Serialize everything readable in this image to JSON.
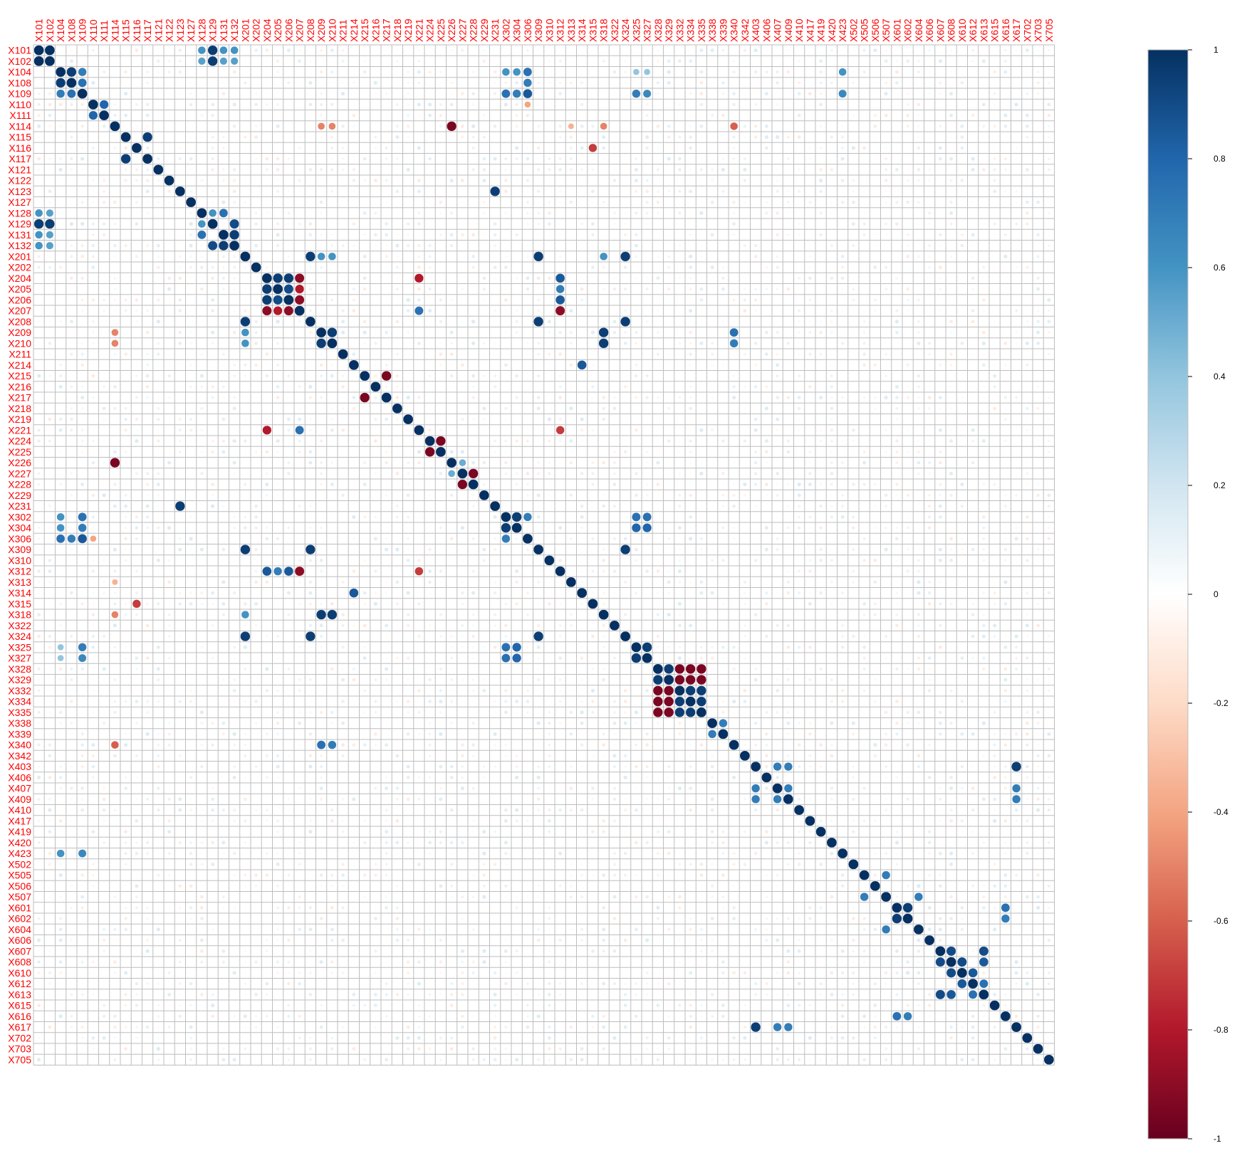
{
  "chart_data": {
    "type": "heatmap",
    "subtype": "correlation-circle-matrix",
    "title": "",
    "label_color": "#FF0000",
    "variables": [
      "X101",
      "X102",
      "X104",
      "X108",
      "X109",
      "X110",
      "X111",
      "X114",
      "X115",
      "X116",
      "X117",
      "X121",
      "X122",
      "X123",
      "X127",
      "X128",
      "X129",
      "X131",
      "X132",
      "X201",
      "X202",
      "X204",
      "X205",
      "X206",
      "X207",
      "X208",
      "X209",
      "X210",
      "X211",
      "X214",
      "X215",
      "X216",
      "X217",
      "X218",
      "X219",
      "X221",
      "X224",
      "X225",
      "X226",
      "X227",
      "X228",
      "X229",
      "X231",
      "X302",
      "X304",
      "X306",
      "X309",
      "X310",
      "X312",
      "X313",
      "X314",
      "X315",
      "X318",
      "X322",
      "X324",
      "X325",
      "X327",
      "X328",
      "X329",
      "X332",
      "X334",
      "X335",
      "X338",
      "X339",
      "X340",
      "X342",
      "X403",
      "X406",
      "X407",
      "X409",
      "X410",
      "X417",
      "X419",
      "X420",
      "X423",
      "X502",
      "X505",
      "X506",
      "X507",
      "X601",
      "X602",
      "X604",
      "X606",
      "X607",
      "X608",
      "X610",
      "X612",
      "X613",
      "X615",
      "X616",
      "X617",
      "X702",
      "X703",
      "X705"
    ],
    "diagonal": 1,
    "correlations": [
      [
        "X101",
        "X102",
        1.0
      ],
      [
        "X101",
        "X129",
        0.95
      ],
      [
        "X101",
        "X131",
        0.6
      ],
      [
        "X101",
        "X132",
        0.6
      ],
      [
        "X101",
        "X128",
        0.6
      ],
      [
        "X102",
        "X129",
        0.95
      ],
      [
        "X102",
        "X128",
        0.55
      ],
      [
        "X102",
        "X131",
        0.55
      ],
      [
        "X102",
        "X132",
        0.55
      ],
      [
        "X104",
        "X108",
        0.95
      ],
      [
        "X104",
        "X109",
        0.7
      ],
      [
        "X104",
        "X302",
        0.6
      ],
      [
        "X104",
        "X304",
        0.6
      ],
      [
        "X104",
        "X306",
        0.75
      ],
      [
        "X104",
        "X423",
        0.6
      ],
      [
        "X104",
        "X325",
        0.4
      ],
      [
        "X104",
        "X327",
        0.4
      ],
      [
        "X108",
        "X109",
        0.75
      ],
      [
        "X108",
        "X306",
        0.7
      ],
      [
        "X109",
        "X302",
        0.75
      ],
      [
        "X109",
        "X304",
        0.7
      ],
      [
        "X109",
        "X306",
        0.85
      ],
      [
        "X109",
        "X325",
        0.7
      ],
      [
        "X109",
        "X327",
        0.65
      ],
      [
        "X109",
        "X423",
        0.65
      ],
      [
        "X110",
        "X111",
        0.8
      ],
      [
        "X110",
        "X306",
        -0.4
      ],
      [
        "X114",
        "X226",
        -0.95
      ],
      [
        "X114",
        "X340",
        -0.6
      ],
      [
        "X114",
        "X209",
        -0.5
      ],
      [
        "X114",
        "X210",
        -0.5
      ],
      [
        "X114",
        "X313",
        -0.35
      ],
      [
        "X114",
        "X318",
        -0.5
      ],
      [
        "X115",
        "X117",
        0.95
      ],
      [
        "X116",
        "X315",
        -0.7
      ],
      [
        "X123",
        "X231",
        0.95
      ],
      [
        "X128",
        "X131",
        0.75
      ],
      [
        "X128",
        "X129",
        0.6
      ],
      [
        "X129",
        "X132",
        0.9
      ],
      [
        "X131",
        "X132",
        0.95
      ],
      [
        "X201",
        "X208",
        0.95
      ],
      [
        "X201",
        "X309",
        0.95
      ],
      [
        "X201",
        "X324",
        0.95
      ],
      [
        "X201",
        "X318",
        0.6
      ],
      [
        "X201",
        "X209",
        0.6
      ],
      [
        "X201",
        "X210",
        0.6
      ],
      [
        "X204",
        "X205",
        0.95
      ],
      [
        "X204",
        "X206",
        0.95
      ],
      [
        "X204",
        "X207",
        -0.9
      ],
      [
        "X204",
        "X221",
        -0.8
      ],
      [
        "X204",
        "X312",
        0.85
      ],
      [
        "X205",
        "X206",
        0.9
      ],
      [
        "X205",
        "X207",
        -0.8
      ],
      [
        "X205",
        "X312",
        0.7
      ],
      [
        "X206",
        "X207",
        -0.9
      ],
      [
        "X206",
        "X312",
        0.85
      ],
      [
        "X207",
        "X312",
        -0.9
      ],
      [
        "X207",
        "X221",
        0.75
      ],
      [
        "X208",
        "X309",
        0.95
      ],
      [
        "X208",
        "X324",
        0.95
      ],
      [
        "X209",
        "X210",
        0.95
      ],
      [
        "X209",
        "X318",
        0.95
      ],
      [
        "X209",
        "X340",
        0.75
      ],
      [
        "X210",
        "X318",
        0.95
      ],
      [
        "X210",
        "X340",
        0.7
      ],
      [
        "X214",
        "X314",
        0.85
      ],
      [
        "X215",
        "X217",
        -0.95
      ],
      [
        "X221",
        "X312",
        -0.7
      ],
      [
        "X224",
        "X225",
        -0.95
      ],
      [
        "X226",
        "X227",
        0.5
      ],
      [
        "X227",
        "X228",
        -0.95
      ],
      [
        "X302",
        "X304",
        0.95
      ],
      [
        "X302",
        "X306",
        0.7
      ],
      [
        "X302",
        "X325",
        0.75
      ],
      [
        "X302",
        "X327",
        0.75
      ],
      [
        "X304",
        "X325",
        0.8
      ],
      [
        "X304",
        "X327",
        0.8
      ],
      [
        "X309",
        "X324",
        0.95
      ],
      [
        "X325",
        "X327",
        0.95
      ],
      [
        "X328",
        "X329",
        0.95
      ],
      [
        "X328",
        "X332",
        -0.95
      ],
      [
        "X328",
        "X334",
        -0.95
      ],
      [
        "X328",
        "X335",
        -0.95
      ],
      [
        "X329",
        "X332",
        -0.95
      ],
      [
        "X329",
        "X334",
        -0.95
      ],
      [
        "X329",
        "X335",
        -0.95
      ],
      [
        "X332",
        "X334",
        0.95
      ],
      [
        "X332",
        "X335",
        0.95
      ],
      [
        "X334",
        "X335",
        0.95
      ],
      [
        "X338",
        "X339",
        0.7
      ],
      [
        "X403",
        "X407",
        0.7
      ],
      [
        "X403",
        "X409",
        0.7
      ],
      [
        "X403",
        "X617",
        0.95
      ],
      [
        "X407",
        "X409",
        0.7
      ],
      [
        "X407",
        "X617",
        0.7
      ],
      [
        "X409",
        "X617",
        0.7
      ],
      [
        "X505",
        "X507",
        0.7
      ],
      [
        "X507",
        "X604",
        0.7
      ],
      [
        "X601",
        "X602",
        0.95
      ],
      [
        "X601",
        "X616",
        0.75
      ],
      [
        "X602",
        "X616",
        0.7
      ],
      [
        "X607",
        "X608",
        0.9
      ],
      [
        "X607",
        "X613",
        0.9
      ],
      [
        "X608",
        "X610",
        0.9
      ],
      [
        "X608",
        "X613",
        0.85
      ],
      [
        "X610",
        "X612",
        0.85
      ],
      [
        "X612",
        "X613",
        0.75
      ]
    ],
    "scale": {
      "min": -1,
      "max": 1,
      "colors": [
        "#67001F",
        "#B2182B",
        "#D6604D",
        "#F4A582",
        "#FDDBC7",
        "#FFFFFF",
        "#D1E5F0",
        "#92C5DE",
        "#4393C3",
        "#2166AC",
        "#053061"
      ],
      "tick_labels": [
        "1",
        "0.8",
        "0.6",
        "0.4",
        "0.2",
        "0",
        "-0.2",
        "-0.4",
        "-0.6",
        "-0.8",
        "-1"
      ],
      "tick_values": [
        1,
        0.8,
        0.6,
        0.4,
        0.2,
        0,
        -0.2,
        -0.4,
        -0.6,
        -0.8,
        -1
      ]
    },
    "grid": true,
    "legend": "right colorbar"
  }
}
